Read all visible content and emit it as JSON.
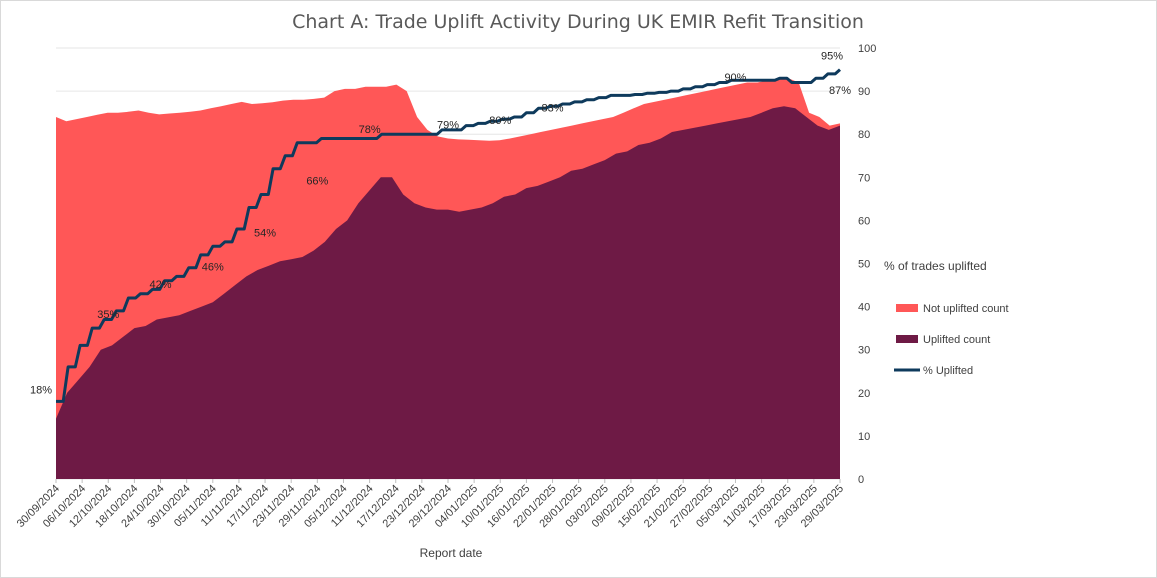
{
  "chart_data": {
    "type": "area",
    "title": "Chart A: Trade Uplift Activity During UK EMIR Refit Transition",
    "xlabel": "Report date",
    "ylabel_right": "% of trades uplifted",
    "ylim_right": [
      0,
      100
    ],
    "y_ticks_right": [
      "0",
      "10",
      "20",
      "30",
      "40",
      "50",
      "60",
      "70",
      "80",
      "90",
      "100"
    ],
    "x_tick_labels": [
      "30/09/2024",
      "06/10/2024",
      "12/10/2024",
      "18/10/2024",
      "24/10/2024",
      "30/10/2024",
      "05/11/2024",
      "11/11/2024",
      "17/11/2024",
      "23/11/2024",
      "29/11/2024",
      "05/12/2024",
      "11/12/2024",
      "17/12/2024",
      "23/12/2024",
      "29/12/2024",
      "04/01/2025",
      "10/01/2025",
      "16/01/2025",
      "22/01/2025",
      "28/01/2025",
      "03/02/2025",
      "09/02/2025",
      "15/02/2025",
      "21/02/2025",
      "27/02/2025",
      "05/03/2025",
      "11/03/2025",
      "17/03/2025",
      "23/03/2025",
      "29/03/2025"
    ],
    "series": [
      {
        "name": "Not uplifted count",
        "color": "#ff5757"
      },
      {
        "name": "Uplifted count",
        "color": "#6e1a45"
      },
      {
        "name": "% Uplifted",
        "color": "#0e3a5c"
      }
    ],
    "total_count_pct_of_axis": [
      84,
      83,
      83.5,
      84,
      84.5,
      85,
      85,
      85.2,
      85.5,
      85,
      84.6,
      84.8,
      85,
      85.2,
      85.5,
      86,
      86.5,
      87,
      87.5,
      87,
      87.2,
      87.4,
      87.8,
      88,
      88,
      88.2,
      88.5,
      90,
      90.5,
      90.5,
      91,
      91,
      91,
      91.5,
      90,
      84,
      81,
      79.5,
      79,
      78.8,
      78.7,
      78.6,
      78.5,
      78.6,
      79,
      79.5,
      80,
      80.5,
      81,
      81.5,
      82,
      82.5,
      83,
      83.5,
      84,
      85,
      86,
      87,
      87.5,
      88,
      88.5,
      89,
      89.5,
      90,
      90.5,
      91,
      91.5,
      92,
      92,
      92.5,
      93,
      93,
      92,
      85,
      84,
      82,
      82.5
    ],
    "uplifted_count_pct_of_axis": [
      14,
      20,
      23,
      26,
      30,
      31,
      33,
      35,
      35.5,
      37,
      37.5,
      38,
      39,
      40,
      41,
      43,
      45,
      47,
      48.5,
      49.5,
      50.5,
      51,
      51.5,
      53,
      55,
      58,
      60,
      64,
      67,
      70,
      70,
      66,
      64,
      63,
      62.5,
      62.5,
      62,
      62.5,
      63,
      64,
      65.5,
      66,
      67.5,
      68,
      69,
      70,
      71.5,
      72,
      73,
      74,
      75.5,
      76,
      77.5,
      78,
      79,
      80.5,
      81,
      81.5,
      82,
      82.5,
      83,
      83.5,
      84,
      85,
      86,
      86.5,
      86,
      84,
      82,
      81,
      82
    ],
    "pct_uplifted": [
      18,
      26,
      31,
      35,
      37,
      39,
      42,
      43,
      44,
      46,
      47,
      49,
      52,
      54,
      55,
      58,
      63,
      66,
      72,
      75,
      78,
      78,
      79,
      79,
      79,
      79,
      79,
      80,
      80,
      80,
      80,
      80,
      81,
      81,
      82,
      82.5,
      83,
      83.5,
      84,
      85,
      86,
      86.5,
      87,
      87.5,
      88,
      88.5,
      89,
      89,
      89.2,
      89.5,
      89.7,
      90,
      90.5,
      91,
      91.5,
      92,
      92.5,
      92.5,
      92.5,
      92.5,
      93,
      92,
      92,
      93,
      94,
      95
    ],
    "data_labels": [
      {
        "text": "18%",
        "x": "30/09/2024",
        "y": 18
      },
      {
        "text": "35%",
        "x": "12/10/2024",
        "y": 35
      },
      {
        "text": "42%",
        "x": "24/10/2024",
        "y": 42
      },
      {
        "text": "46%",
        "x": "05/11/2024",
        "y": 46
      },
      {
        "text": "54%",
        "x": "17/11/2024",
        "y": 54
      },
      {
        "text": "66%",
        "x": "29/11/2024",
        "y": 66
      },
      {
        "text": "78%",
        "x": "11/12/2024",
        "y": 78
      },
      {
        "text": "79%",
        "x": "29/12/2024",
        "y": 79
      },
      {
        "text": "80%",
        "x": "10/01/2025",
        "y": 80
      },
      {
        "text": "83%",
        "x": "22/01/2025",
        "y": 83
      },
      {
        "text": "87%",
        "x": "06/02/2025",
        "y": 87
      },
      {
        "text": "90%",
        "x": "05/03/2025",
        "y": 90
      },
      {
        "text": "95%",
        "x": "29/03/2025",
        "y": 95
      }
    ],
    "legend_placement": "right"
  }
}
